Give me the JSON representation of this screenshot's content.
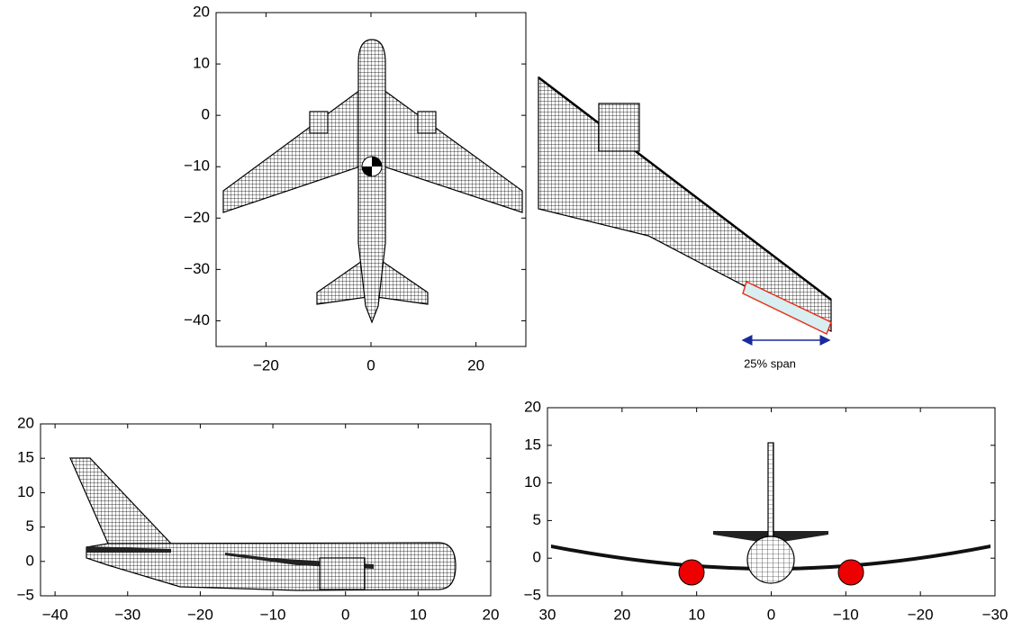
{
  "chart_data": [
    {
      "type": "wireframe",
      "xlim": [
        -29.5,
        29.5
      ],
      "ylim": [
        -45,
        20
      ],
      "xticks": [
        {
          "value": -20,
          "label": "−20"
        },
        0,
        20
      ],
      "yticks": [
        {
          "value": -40,
          "label": "−40"
        },
        {
          "value": -30,
          "label": "−30"
        },
        {
          "value": -20,
          "label": "−20"
        },
        {
          "value": -10,
          "label": "−10"
        },
        0,
        10,
        20
      ]
    },
    {
      "type": "wireframe",
      "xlim": [
        -42,
        20
      ],
      "ylim": [
        -5,
        20
      ],
      "xticks": [
        {
          "value": -40,
          "label": "−40"
        },
        {
          "value": -30,
          "label": "−30"
        },
        {
          "value": -20,
          "label": "−20"
        },
        {
          "value": -10,
          "label": "−10"
        },
        0,
        10,
        20
      ],
      "yticks": [
        {
          "value": -5,
          "label": "−5"
        },
        0,
        5,
        10,
        15,
        20
      ]
    },
    {
      "type": "wireframe",
      "xlim": [
        30,
        -30
      ],
      "ylim": [
        -5,
        20
      ],
      "xticks": [
        30,
        20,
        10,
        0,
        {
          "value": -10,
          "label": "−10"
        },
        {
          "value": -20,
          "label": "−20"
        },
        {
          "value": -30,
          "label": "−30"
        }
      ],
      "yticks": [
        {
          "value": -5,
          "label": "−5"
        },
        0,
        5,
        10,
        15,
        20
      ]
    }
  ],
  "annotation": "25% span"
}
